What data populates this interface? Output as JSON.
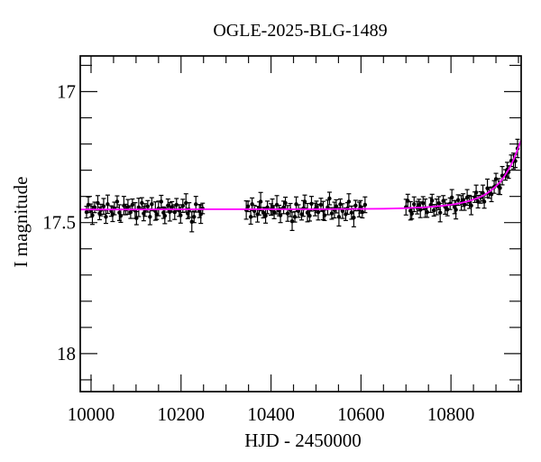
{
  "window": {
    "background": "#ffffff"
  },
  "chart_data": {
    "type": "scatter",
    "title": "OGLE-2025-BLG-1489",
    "xlabel": "HJD - 2450000",
    "ylabel": "I magnitude",
    "xlim": [
      9976,
      10956
    ],
    "ylim": [
      16.864,
      18.145
    ],
    "y_axis_inverted": true,
    "grid": false,
    "legend": "none",
    "x_major_ticks": [
      10000,
      10200,
      10400,
      10600,
      10800
    ],
    "x_tick_labels": [
      "10000",
      "10200",
      "10400",
      "10600",
      "10800"
    ],
    "x_minor_step": 50,
    "y_major_ticks": [
      17,
      17.5,
      18
    ],
    "y_tick_labels": [
      "17",
      "17.5",
      "18"
    ],
    "y_minor_step": 0.1,
    "baseline_magnitude": 17.45,
    "point_color": "#000000",
    "curve_color": "#ff00ff",
    "model_curve": [
      [
        9976,
        17.45
      ],
      [
        10100,
        17.45
      ],
      [
        10250,
        17.449
      ],
      [
        10400,
        17.449
      ],
      [
        10500,
        17.449
      ],
      [
        10575,
        17.448
      ],
      [
        10650,
        17.447
      ],
      [
        10700,
        17.445
      ],
      [
        10720,
        17.443
      ],
      [
        10740,
        17.442
      ],
      [
        10760,
        17.439
      ],
      [
        10780,
        17.436
      ],
      [
        10800,
        17.432
      ],
      [
        10810,
        17.429
      ],
      [
        10820,
        17.426
      ],
      [
        10830,
        17.422
      ],
      [
        10840,
        17.418
      ],
      [
        10850,
        17.412
      ],
      [
        10860,
        17.406
      ],
      [
        10870,
        17.398
      ],
      [
        10880,
        17.388
      ],
      [
        10890,
        17.376
      ],
      [
        10900,
        17.361
      ],
      [
        10910,
        17.344
      ],
      [
        10920,
        17.32
      ],
      [
        10930,
        17.292
      ],
      [
        10940,
        17.257
      ],
      [
        10945,
        17.235
      ],
      [
        10950,
        17.212
      ],
      [
        10956,
        17.186
      ]
    ],
    "points": [
      [
        9990,
        17.46,
        0.022
      ],
      [
        9994,
        17.432,
        0.03
      ],
      [
        10000,
        17.454,
        0.025
      ],
      [
        10003,
        17.472,
        0.035
      ],
      [
        10008,
        17.442,
        0.02
      ],
      [
        10015,
        17.425,
        0.028
      ],
      [
        10019,
        17.465,
        0.024
      ],
      [
        10022,
        17.452,
        0.022
      ],
      [
        10028,
        17.438,
        0.03
      ],
      [
        10033,
        17.478,
        0.025
      ],
      [
        10037,
        17.43,
        0.035
      ],
      [
        10045,
        17.456,
        0.02
      ],
      [
        10048,
        17.468,
        0.028
      ],
      [
        10052,
        17.446,
        0.024
      ],
      [
        10058,
        17.42,
        0.022
      ],
      [
        10063,
        17.462,
        0.03
      ],
      [
        10066,
        17.474,
        0.025
      ],
      [
        10073,
        17.435,
        0.035
      ],
      [
        10077,
        17.45,
        0.02
      ],
      [
        10082,
        17.44,
        0.028
      ],
      [
        10088,
        17.46,
        0.024
      ],
      [
        10092,
        17.432,
        0.022
      ],
      [
        10098,
        17.454,
        0.03
      ],
      [
        10101,
        17.483,
        0.025
      ],
      [
        10106,
        17.442,
        0.035
      ],
      [
        10113,
        17.425,
        0.02
      ],
      [
        10117,
        17.465,
        0.028
      ],
      [
        10120,
        17.452,
        0.024
      ],
      [
        10126,
        17.438,
        0.022
      ],
      [
        10131,
        17.478,
        0.03
      ],
      [
        10135,
        17.43,
        0.025
      ],
      [
        10143,
        17.456,
        0.035
      ],
      [
        10146,
        17.468,
        0.02
      ],
      [
        10150,
        17.446,
        0.028
      ],
      [
        10156,
        17.42,
        0.024
      ],
      [
        10161,
        17.462,
        0.022
      ],
      [
        10164,
        17.474,
        0.03
      ],
      [
        10171,
        17.435,
        0.025
      ],
      [
        10175,
        17.459,
        0.035
      ],
      [
        10180,
        17.44,
        0.02
      ],
      [
        10186,
        17.46,
        0.028
      ],
      [
        10190,
        17.432,
        0.024
      ],
      [
        10196,
        17.454,
        0.022
      ],
      [
        10199,
        17.472,
        0.03
      ],
      [
        10204,
        17.436,
        0.025
      ],
      [
        10211,
        17.425,
        0.035
      ],
      [
        10215,
        17.465,
        0.02
      ],
      [
        10218,
        17.452,
        0.028
      ],
      [
        10224,
        17.497,
        0.038
      ],
      [
        10229,
        17.478,
        0.022
      ],
      [
        10233,
        17.43,
        0.03
      ],
      [
        10241,
        17.456,
        0.025
      ],
      [
        10244,
        17.468,
        0.035
      ],
      [
        10248,
        17.446,
        0.02
      ],
      [
        10345,
        17.452,
        0.035
      ],
      [
        10349,
        17.438,
        0.02
      ],
      [
        10355,
        17.478,
        0.028
      ],
      [
        10358,
        17.43,
        0.024
      ],
      [
        10363,
        17.456,
        0.022
      ],
      [
        10370,
        17.468,
        0.03
      ],
      [
        10374,
        17.446,
        0.025
      ],
      [
        10377,
        17.42,
        0.035
      ],
      [
        10383,
        17.462,
        0.02
      ],
      [
        10388,
        17.474,
        0.028
      ],
      [
        10392,
        17.442,
        0.024
      ],
      [
        10400,
        17.45,
        0.022
      ],
      [
        10403,
        17.44,
        0.03
      ],
      [
        10407,
        17.46,
        0.025
      ],
      [
        10413,
        17.432,
        0.035
      ],
      [
        10418,
        17.454,
        0.02
      ],
      [
        10421,
        17.472,
        0.028
      ],
      [
        10428,
        17.442,
        0.024
      ],
      [
        10432,
        17.425,
        0.022
      ],
      [
        10437,
        17.465,
        0.03
      ],
      [
        10443,
        17.452,
        0.025
      ],
      [
        10447,
        17.495,
        0.035
      ],
      [
        10453,
        17.478,
        0.02
      ],
      [
        10456,
        17.43,
        0.028
      ],
      [
        10461,
        17.456,
        0.024
      ],
      [
        10468,
        17.468,
        0.022
      ],
      [
        10472,
        17.446,
        0.03
      ],
      [
        10475,
        17.42,
        0.025
      ],
      [
        10481,
        17.462,
        0.035
      ],
      [
        10486,
        17.474,
        0.02
      ],
      [
        10490,
        17.428,
        0.028
      ],
      [
        10498,
        17.45,
        0.024
      ],
      [
        10501,
        17.44,
        0.022
      ],
      [
        10505,
        17.46,
        0.03
      ],
      [
        10511,
        17.432,
        0.025
      ],
      [
        10516,
        17.454,
        0.035
      ],
      [
        10519,
        17.472,
        0.02
      ],
      [
        10526,
        17.442,
        0.028
      ],
      [
        10530,
        17.408,
        0.024
      ],
      [
        10535,
        17.465,
        0.022
      ],
      [
        10541,
        17.452,
        0.03
      ],
      [
        10545,
        17.438,
        0.025
      ],
      [
        10551,
        17.478,
        0.035
      ],
      [
        10554,
        17.43,
        0.02
      ],
      [
        10559,
        17.456,
        0.028
      ],
      [
        10566,
        17.468,
        0.024
      ],
      [
        10570,
        17.446,
        0.022
      ],
      [
        10573,
        17.42,
        0.03
      ],
      [
        10579,
        17.462,
        0.025
      ],
      [
        10584,
        17.481,
        0.035
      ],
      [
        10588,
        17.435,
        0.02
      ],
      [
        10596,
        17.45,
        0.028
      ],
      [
        10599,
        17.44,
        0.024
      ],
      [
        10603,
        17.46,
        0.022
      ],
      [
        10609,
        17.432,
        0.03
      ],
      [
        10700,
        17.441,
        0.03
      ],
      [
        10704,
        17.417,
        0.025
      ],
      [
        10710,
        17.455,
        0.035
      ],
      [
        10713,
        17.466,
        0.02
      ],
      [
        10718,
        17.43,
        0.028
      ],
      [
        10725,
        17.443,
        0.024
      ],
      [
        10729,
        17.433,
        0.022
      ],
      [
        10732,
        17.451,
        0.03
      ],
      [
        10738,
        17.426,
        0.025
      ],
      [
        10743,
        17.445,
        0.035
      ],
      [
        10747,
        17.46,
        0.02
      ],
      [
        10755,
        17.433,
        0.028
      ],
      [
        10758,
        17.416,
        0.024
      ],
      [
        10762,
        17.453,
        0.022
      ],
      [
        10768,
        17.44,
        0.03
      ],
      [
        10773,
        17.426,
        0.025
      ],
      [
        10776,
        17.462,
        0.035
      ],
      [
        10783,
        17.417,
        0.02
      ],
      [
        10787,
        17.44,
        0.028
      ],
      [
        10792,
        17.45,
        0.024
      ],
      [
        10798,
        17.428,
        0.022
      ],
      [
        10802,
        17.404,
        0.03
      ],
      [
        10808,
        17.441,
        0.025
      ],
      [
        10811,
        17.451,
        0.035
      ],
      [
        10816,
        17.414,
        0.02
      ],
      [
        10823,
        17.425,
        0.028
      ],
      [
        10827,
        17.414,
        0.024
      ],
      [
        10830,
        17.431,
        0.022
      ],
      [
        10836,
        17.404,
        0.03
      ],
      [
        10841,
        17.421,
        0.025
      ],
      [
        10845,
        17.435,
        0.035
      ],
      [
        10853,
        17.403,
        0.02
      ],
      [
        10856,
        17.385,
        0.028
      ],
      [
        10860,
        17.42,
        0.024
      ],
      [
        10866,
        17.404,
        0.022
      ],
      [
        10871,
        17.387,
        0.03
      ],
      [
        10874,
        17.42,
        0.025
      ],
      [
        10881,
        17.369,
        0.035
      ],
      [
        10885,
        17.387,
        0.02
      ],
      [
        10890,
        17.392,
        0.028
      ],
      [
        10896,
        17.364,
        0.024
      ],
      [
        10900,
        17.334,
        0.022
      ],
      [
        10906,
        17.362,
        0.03
      ],
      [
        10909,
        17.368,
        0.025
      ],
      [
        10914,
        17.321,
        0.035
      ],
      [
        10921,
        17.318,
        0.02
      ],
      [
        10925,
        17.298,
        0.028
      ],
      [
        10928,
        17.307,
        0.024
      ],
      [
        10934,
        17.264,
        0.022
      ],
      [
        10939,
        17.265,
        0.03
      ],
      [
        10943,
        17.265,
        0.025
      ],
      [
        10948,
        17.217,
        0.035
      ]
    ]
  }
}
